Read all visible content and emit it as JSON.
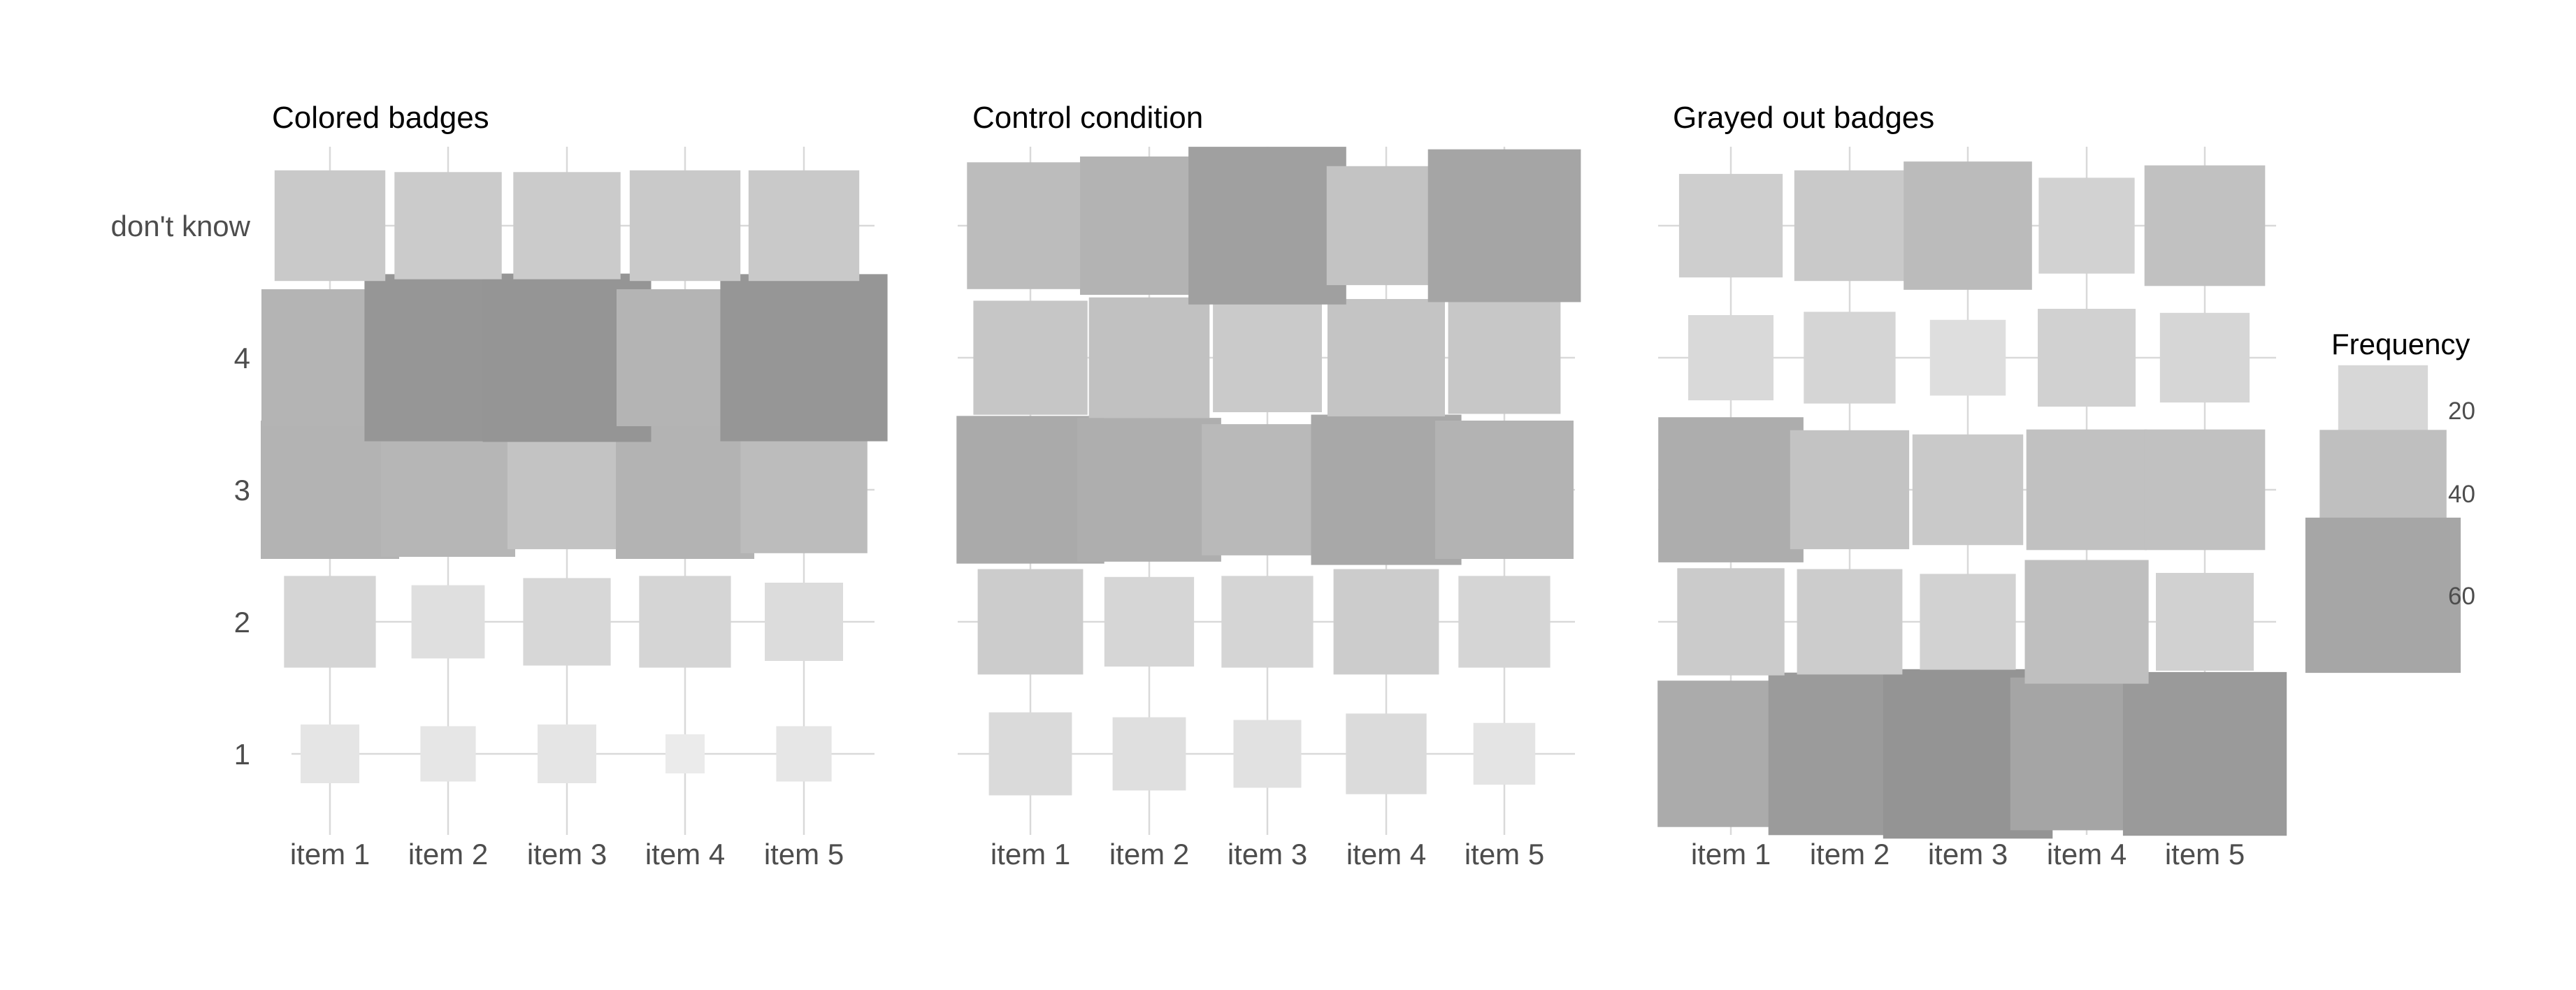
{
  "chart_data": {
    "type": "heatmap",
    "encoding": "square-size-and-gray-shade-by-frequency",
    "x_categories": [
      "item 1",
      "item 2",
      "item 3",
      "item 4",
      "item 5"
    ],
    "y_categories": [
      "1",
      "2",
      "3",
      "4",
      "don't know"
    ],
    "grid": true,
    "legend": {
      "title": "Frequency",
      "placement": "right",
      "entries": [
        {
          "label": "20",
          "value": 20
        },
        {
          "label": "40",
          "value": 40
        },
        {
          "label": "60",
          "value": 60
        }
      ]
    },
    "panels": [
      {
        "title": "Colored badges",
        "values": {
          "1": [
            9,
            8,
            9,
            4,
            8
          ],
          "2": [
            22,
            14,
            20,
            22,
            16
          ],
          "3": [
            50,
            47,
            37,
            50,
            42
          ],
          "4": [
            49,
            73,
            74,
            49,
            73
          ],
          "don't know": [
            32,
            30,
            30,
            32,
            32
          ]
        }
      },
      {
        "title": "Control condition",
        "values": {
          "1": [
            18,
            14,
            12,
            17,
            10
          ],
          "2": [
            29,
            21,
            22,
            29,
            22
          ],
          "3": [
            57,
            54,
            45,
            59,
            50
          ],
          "4": [
            34,
            38,
            31,
            36,
            33
          ],
          "don't know": [
            42,
            50,
            65,
            37,
            61
          ]
        }
      },
      {
        "title": "Grayed out badges",
        "values": {
          "1": [
            56,
            69,
            75,
            61,
            70
          ],
          "2": [
            30,
            29,
            24,
            40,
            25
          ],
          "3": [
            55,
            37,
            32,
            38,
            38
          ],
          "4": [
            19,
            22,
            15,
            25,
            21
          ],
          "don't know": [
            28,
            32,
            43,
            24,
            38
          ]
        }
      }
    ]
  }
}
